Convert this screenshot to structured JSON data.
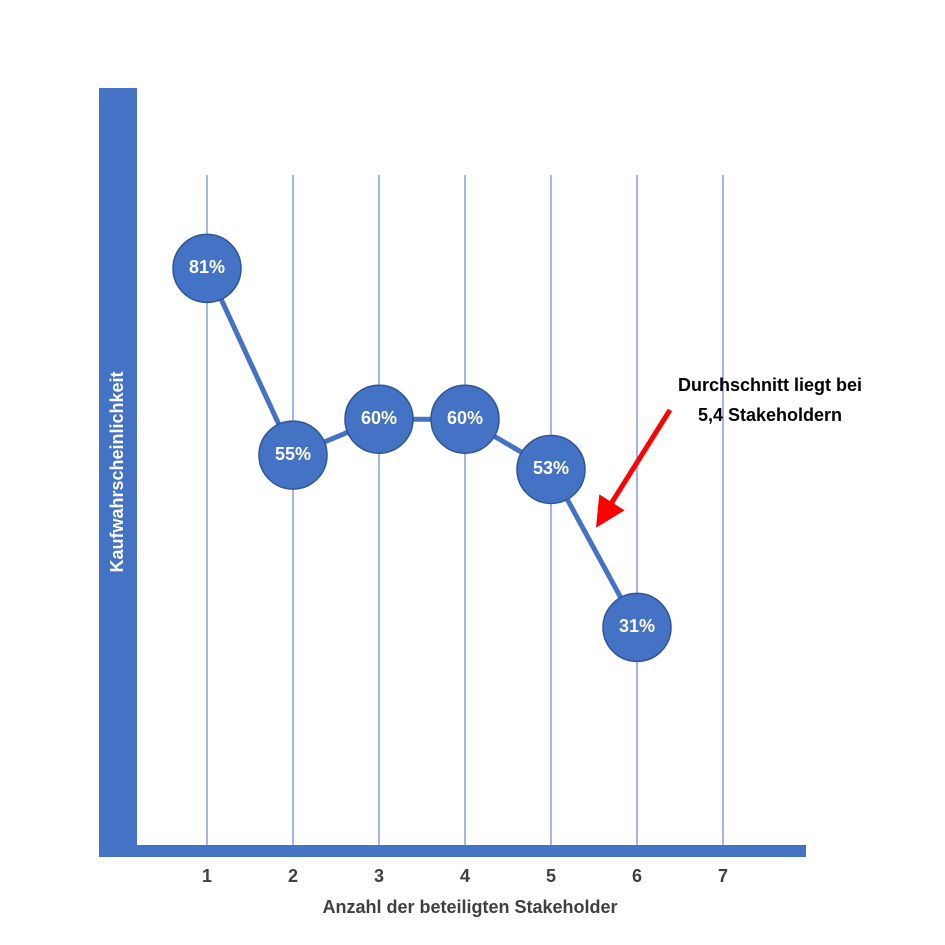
{
  "chart_data": {
    "type": "line",
    "x_label": "Anzahl der beteiligten Stakeholder",
    "y_label": "Kaufwahrscheinlichkeit",
    "x": [
      1,
      2,
      3,
      4,
      5,
      6
    ],
    "values": [
      81,
      55,
      60,
      60,
      53,
      31
    ],
    "value_labels": [
      "81%",
      "55%",
      "60%",
      "60%",
      "53%",
      "31%"
    ],
    "color": "#4472c4",
    "xlim": [
      0,
      8
    ],
    "xticks": [
      1,
      2,
      3,
      4,
      5,
      6,
      7
    ],
    "ylim": [
      0,
      100
    ],
    "grid": true,
    "annotation": [
      "Durchschnitt liegt bei",
      "5,4 Stakeholdern"
    ]
  }
}
